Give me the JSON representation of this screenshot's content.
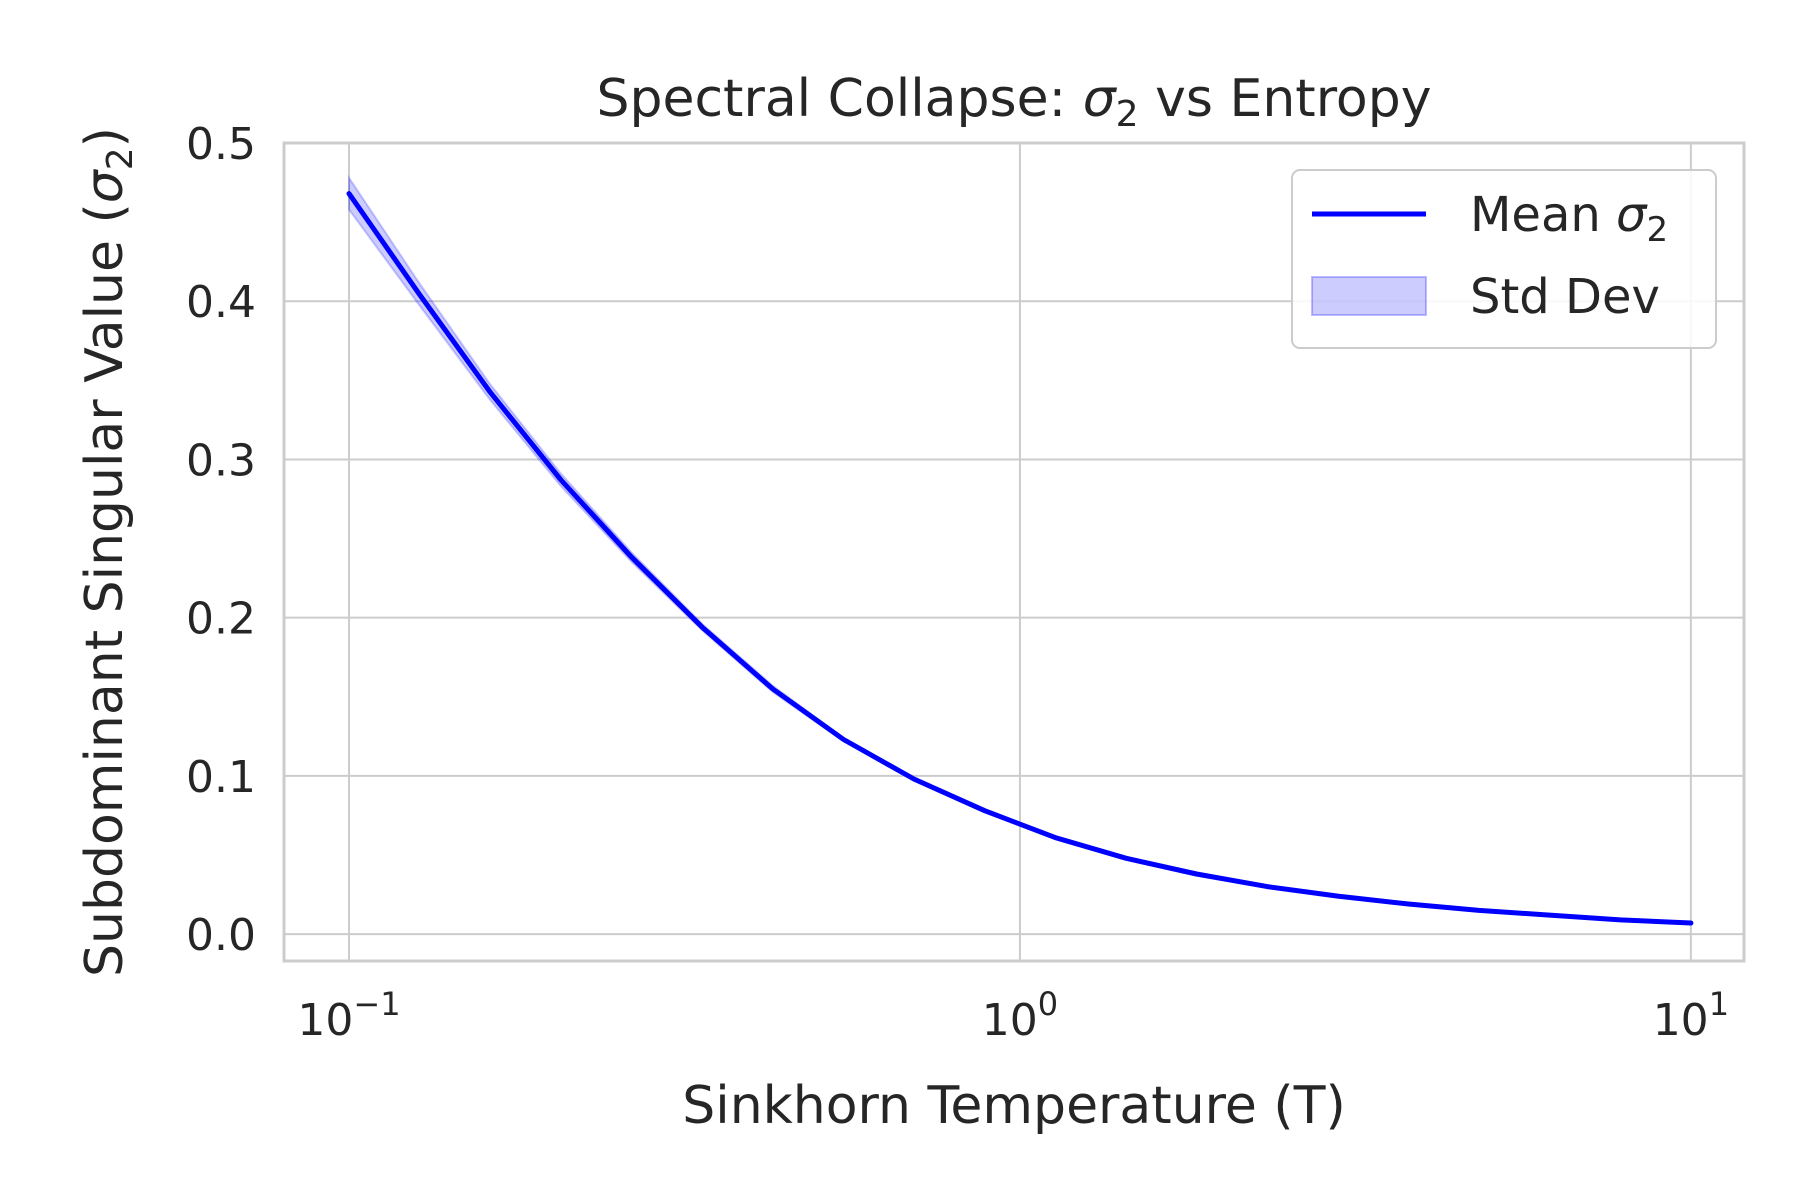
{
  "chart_data": {
    "type": "line",
    "title": "Spectral Collapse: σ₂ vs Entropy",
    "title_parts": {
      "before": "Spectral Collapse: ",
      "sym": "σ",
      "sub": "2",
      "after": " vs Entropy"
    },
    "xlabel": "Sinkhorn Temperature (T)",
    "ylabel": "Subdominant Singular Value (σ₂)",
    "ylabel_parts": {
      "before": "Subdominant Singular Value (",
      "sym": "σ",
      "sub": "2",
      "after": ")"
    },
    "x_scale": "log",
    "xlim": [
      0.08,
      12
    ],
    "ylim": [
      -0.017,
      0.5
    ],
    "x_ticks": [
      {
        "value": 0.1,
        "base": "10",
        "exp": "−1"
      },
      {
        "value": 1,
        "base": "10",
        "exp": "0"
      },
      {
        "value": 10,
        "base": "10",
        "exp": "1"
      }
    ],
    "y_ticks": [
      {
        "value": 0.0,
        "label": "0.0"
      },
      {
        "value": 0.1,
        "label": "0.1"
      },
      {
        "value": 0.2,
        "label": "0.2"
      },
      {
        "value": 0.3,
        "label": "0.3"
      },
      {
        "value": 0.4,
        "label": "0.4"
      },
      {
        "value": 0.5,
        "label": "0.5"
      }
    ],
    "grid": true,
    "legend_position": "top-right",
    "legend": [
      {
        "label": "Mean σ₂",
        "label_parts": {
          "before": "Mean ",
          "sym": "σ",
          "sub": "2"
        },
        "kind": "line"
      },
      {
        "label": "Std Dev",
        "kind": "band"
      }
    ],
    "x": [
      0.1,
      0.127,
      0.162,
      0.207,
      0.264,
      0.336,
      0.428,
      0.546,
      0.695,
      0.886,
      1.129,
      1.438,
      1.833,
      2.336,
      2.976,
      3.793,
      4.833,
      6.158,
      7.848,
      10.0
    ],
    "series": [
      {
        "name": "Mean σ₂",
        "values": [
          0.468,
          0.405,
          0.343,
          0.287,
          0.238,
          0.194,
          0.155,
          0.123,
          0.098,
          0.078,
          0.061,
          0.048,
          0.038,
          0.03,
          0.024,
          0.019,
          0.015,
          0.012,
          0.009,
          0.007
        ],
        "std": [
          0.01,
          0.007,
          0.005,
          0.004,
          0.003,
          0.002,
          0.002,
          0.001,
          0.001,
          0.001,
          0.001,
          0.001,
          0.001,
          0.0005,
          0.0005,
          0.0005,
          0.0005,
          0.0005,
          0.0005,
          0.0005
        ]
      }
    ],
    "colors": {
      "line": "#0000ff",
      "band": "#0000ff",
      "grid": "#cccccc",
      "text": "#262626"
    }
  }
}
